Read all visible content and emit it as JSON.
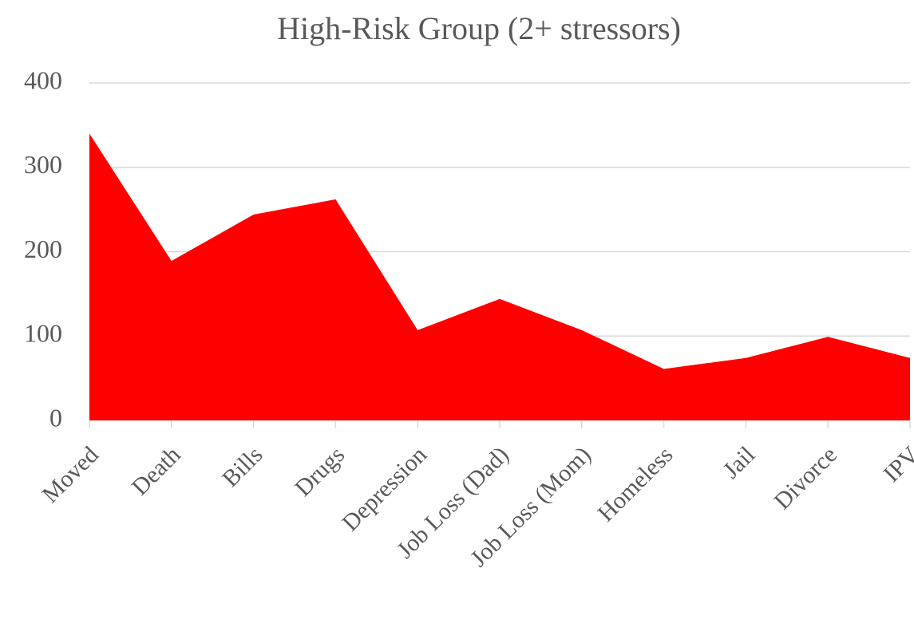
{
  "chart_data": {
    "type": "area",
    "title": "High-Risk Group (2+ stressors)",
    "categories": [
      "Moved",
      "Death",
      "Bills",
      "Drugs",
      "Depression",
      "Job Loss (Dad)",
      "Job Loss (Mom)",
      "Homeless",
      "Jail",
      "Divorce",
      "IPV"
    ],
    "values": [
      340,
      189,
      244,
      262,
      107,
      144,
      107,
      61,
      74,
      99,
      74
    ],
    "color": "#ff0000",
    "ylim": [
      0,
      400
    ],
    "yticks": [
      0,
      100,
      200,
      300,
      400
    ],
    "grid": true
  }
}
